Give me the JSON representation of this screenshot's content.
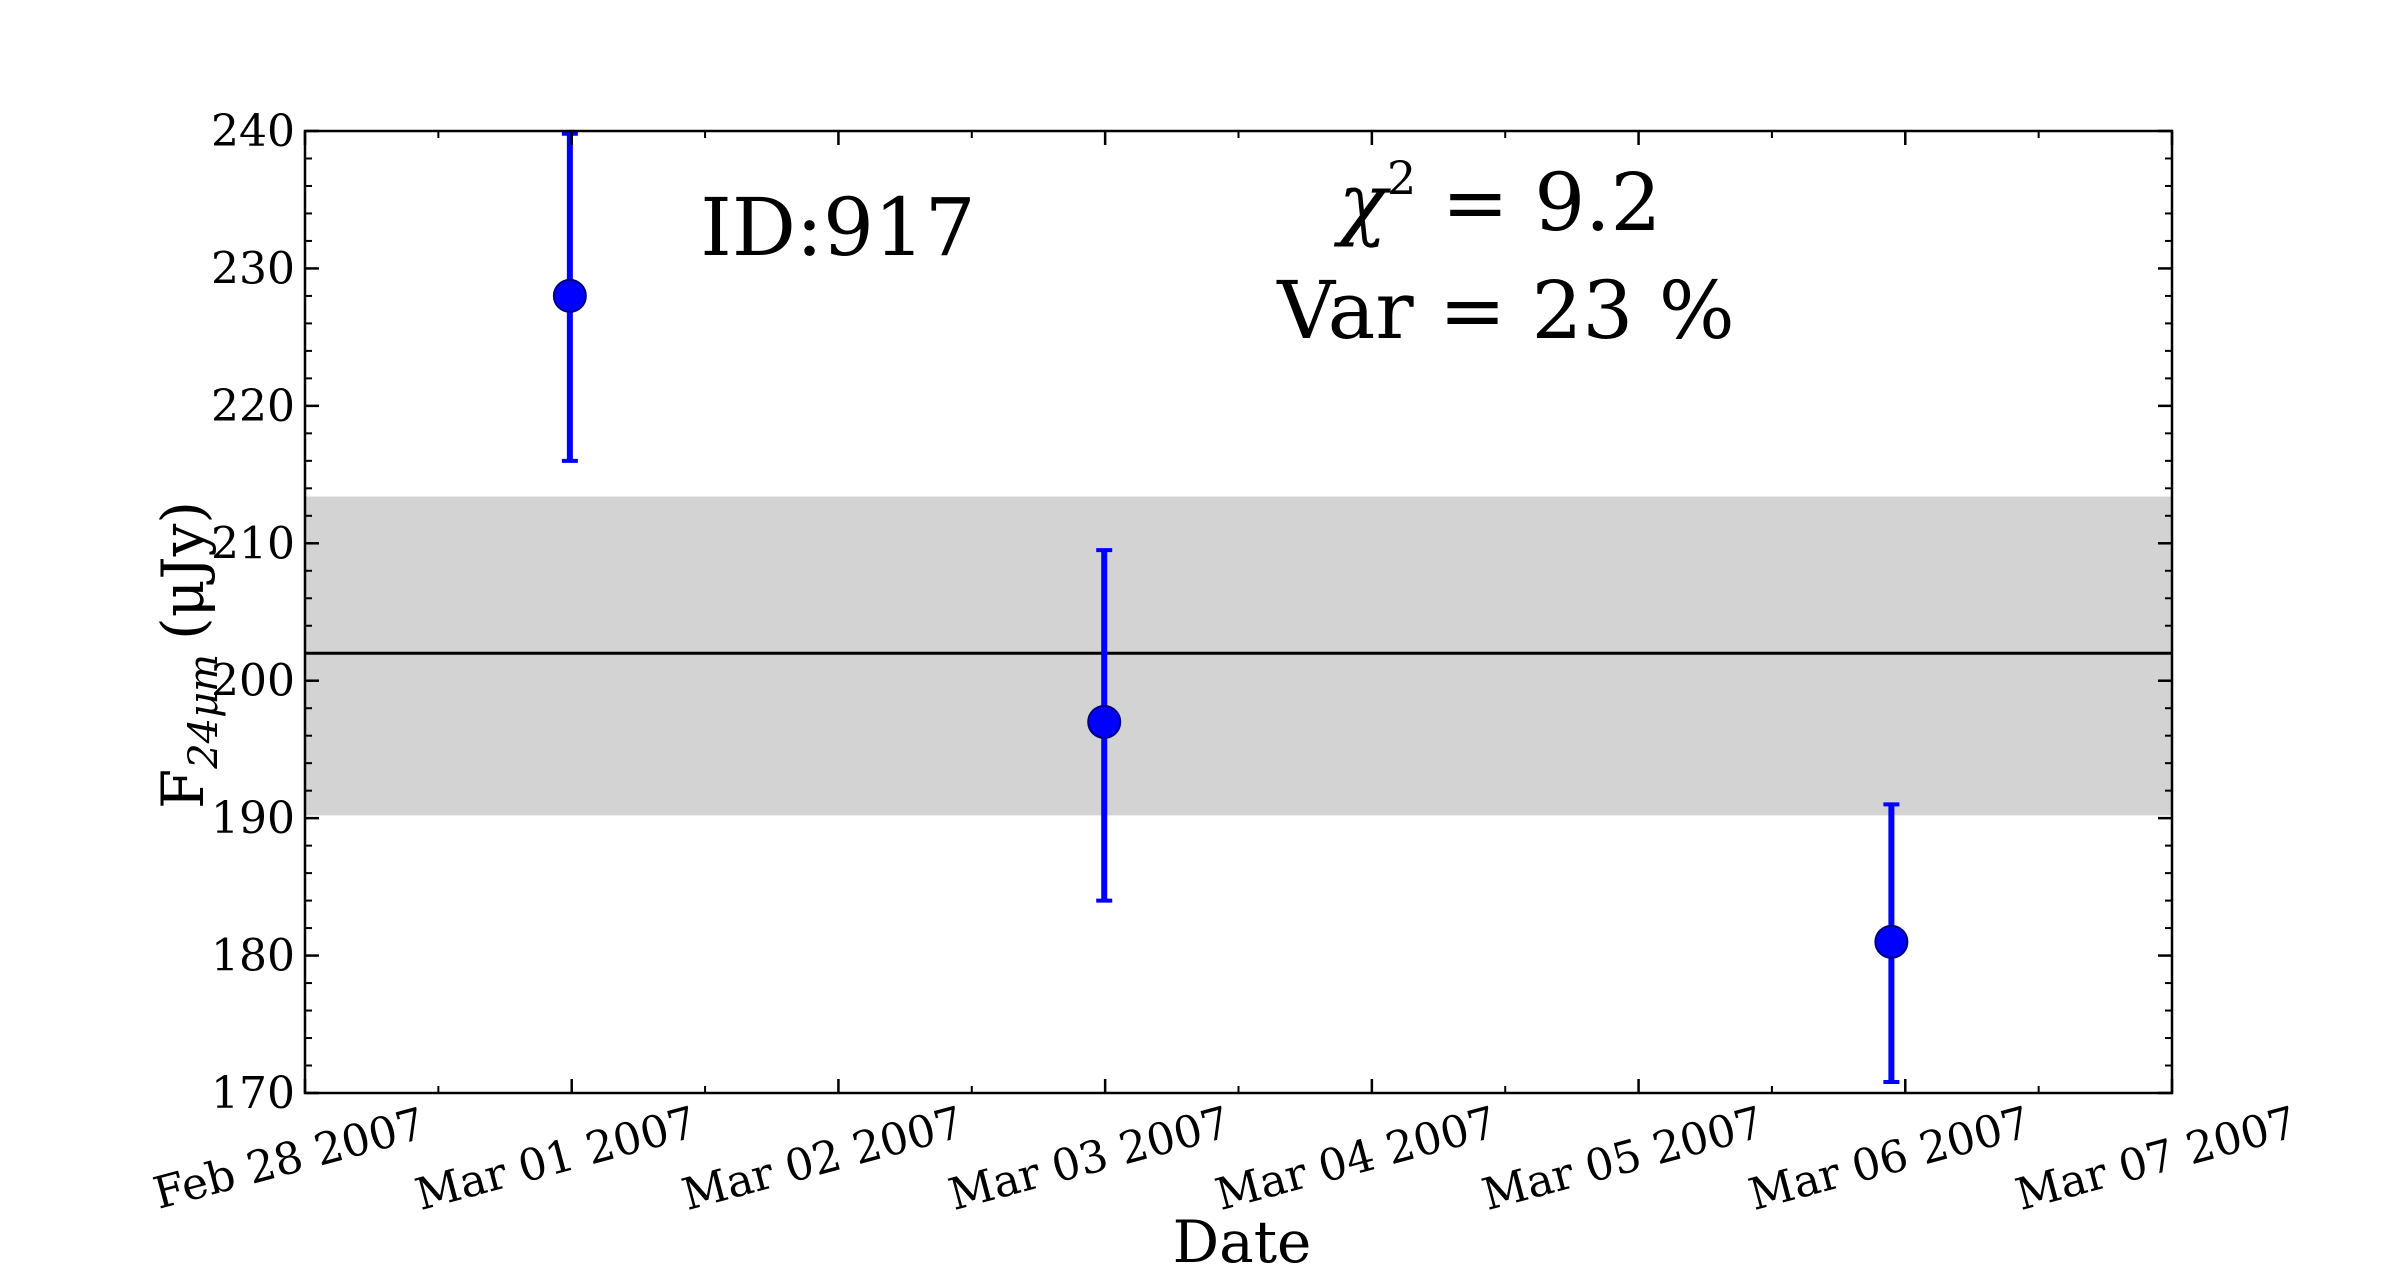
{
  "chart_data": {
    "type": "scatter",
    "title": "",
    "xlabel": "Date",
    "ylabel": "F",
    "ylabel_sub": "24μm",
    "ylabel_unit": "(μJy)",
    "x_range": [
      "2007-02-28",
      "2007-03-07"
    ],
    "ylim": [
      170,
      240
    ],
    "y_ticks": [
      170,
      180,
      190,
      200,
      210,
      220,
      230,
      240
    ],
    "x_ticks": [
      "2007-02-28",
      "2007-03-01",
      "2007-03-02",
      "2007-03-03",
      "2007-03-04",
      "2007-03-05",
      "2007-03-06",
      "2007-03-07"
    ],
    "x_tick_labels": [
      "Feb 28 2007",
      "Mar 01 2007",
      "Mar 02 2007",
      "Mar 03 2007",
      "Mar 04 2007",
      "Mar 05 2007",
      "Mar 06 2007",
      "Mar 07 2007"
    ],
    "points": [
      {
        "x": "2007-02-28 23:50",
        "y": 228,
        "err_low": 216,
        "err_high": 239.8
      },
      {
        "x": "2007-03-02 23:55",
        "y": 197,
        "err_low": 184,
        "err_high": 209.5
      },
      {
        "x": "2007-03-05 22:45",
        "y": 181,
        "err_low": 170.8,
        "err_high": 191
      }
    ],
    "mean_line": 202,
    "band": [
      190.2,
      213.4
    ],
    "annotations": {
      "id_label": "ID:917",
      "chi_symbol": "χ",
      "chi_power": "2",
      "chi_rest": " = 9.2",
      "var_label": "Var = 23 %"
    },
    "colors": {
      "points": "#0000ff",
      "band": "#d3d3d3",
      "mean_line": "#000000"
    },
    "grid": false
  }
}
